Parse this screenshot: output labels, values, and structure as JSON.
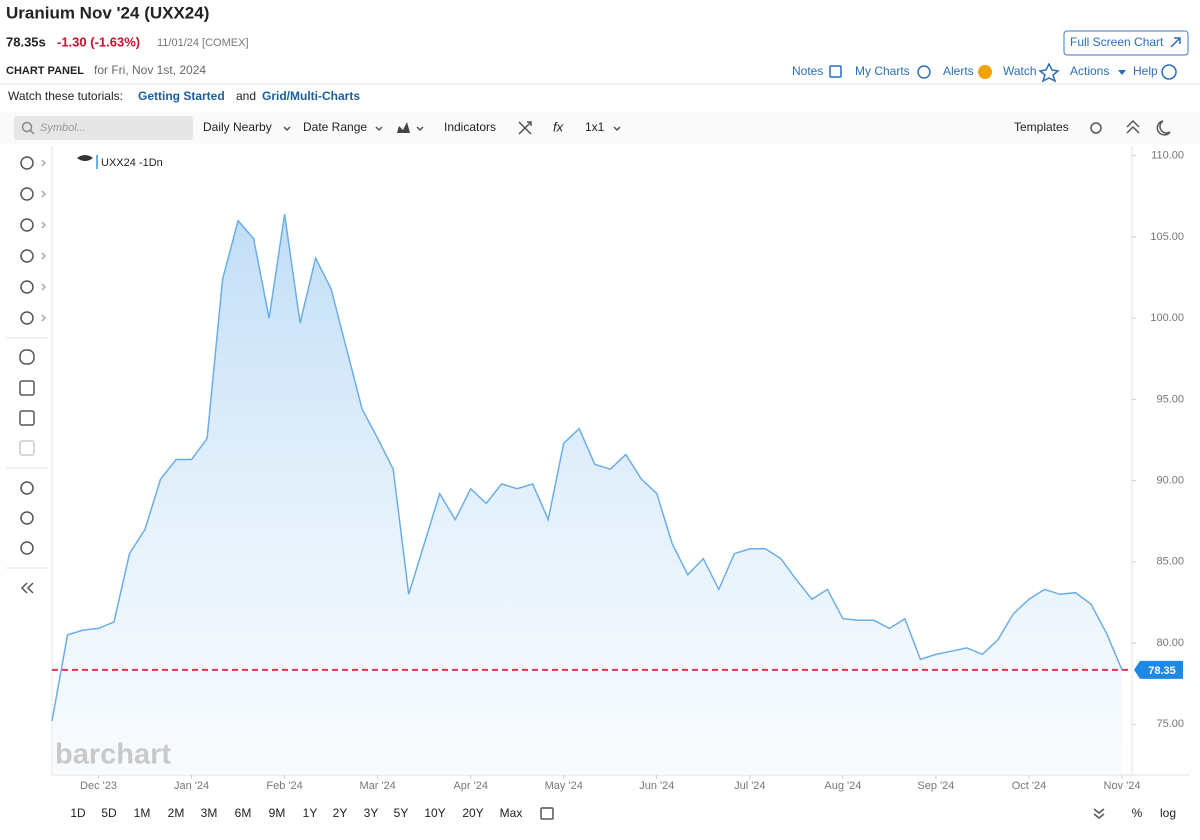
{
  "header": {
    "title": "Uranium Nov '24 (UXX24)",
    "price": "78.35s",
    "change": "-1.30 (-1.63%)",
    "date": "11/01/24 [COMEX]",
    "full_screen": "Full Screen Chart",
    "panel_label": "CHART PANEL",
    "panel_date": "for Fri, Nov 1st, 2024",
    "links": [
      "Notes",
      "My Charts",
      "Alerts",
      "Watch",
      "Actions",
      "Help"
    ]
  },
  "tutorials": {
    "prefix": "Watch these tutorials:",
    "links": [
      "Getting Started",
      "Grid/Multi-Charts"
    ],
    "joiner": "and"
  },
  "toolbar": {
    "symbol_placeholder": "Symbol...",
    "items": [
      "Daily Nearby",
      "Date Range",
      "Indicators",
      "fx",
      "1x1"
    ],
    "templates": "Templates"
  },
  "chart_data": {
    "type": "area",
    "legend": "UXX24 -1Dn",
    "watermark": "barchart",
    "color": "#6aaee8",
    "categories": [
      null,
      null,
      null,
      "Dec '23",
      null,
      null,
      null,
      null,
      null,
      "Jan '24",
      null,
      null,
      null,
      null,
      null,
      "Feb '24",
      null,
      null,
      null,
      null,
      null,
      "Mar '24",
      null,
      null,
      null,
      null,
      null,
      "Apr '24",
      null,
      null,
      null,
      null,
      null,
      "May '24",
      null,
      null,
      null,
      null,
      null,
      "Jun '24",
      null,
      null,
      null,
      null,
      null,
      "Jul '24",
      null,
      null,
      null,
      null,
      null,
      "Aug '24",
      null,
      null,
      null,
      null,
      null,
      "Sep '24",
      null,
      null,
      null,
      null,
      null,
      "Oct '24",
      null,
      null,
      null,
      null,
      null,
      "Nov '24"
    ],
    "values": [
      75.2,
      80.5,
      80.8,
      80.9,
      81.3,
      85.5,
      87.0,
      90.1,
      91.3,
      91.3,
      92.6,
      102.4,
      106.0,
      104.9,
      100.0,
      106.4,
      99.7,
      103.7,
      101.8,
      98.1,
      94.4,
      92.6,
      90.7,
      83.0,
      86.1,
      89.2,
      87.6,
      89.5,
      88.6,
      89.8,
      89.5,
      89.8,
      87.6,
      92.3,
      93.2,
      91.0,
      90.7,
      91.6,
      90.1,
      89.2,
      86.1,
      84.2,
      85.2,
      83.3,
      85.5,
      85.8,
      85.8,
      85.2,
      83.9,
      82.7,
      83.3,
      81.5,
      81.4,
      81.4,
      80.9,
      81.5,
      79.0,
      79.3,
      79.5,
      79.7,
      79.3,
      80.2,
      81.8,
      82.7,
      83.3,
      83.0,
      83.1,
      82.4,
      80.6,
      78.35
    ],
    "ylim": [
      72,
      110.6
    ],
    "yticks": [
      {
        "value": 75,
        "label": "75.00"
      },
      {
        "value": 80,
        "label": "80.00"
      },
      {
        "value": 85,
        "label": "85.00"
      },
      {
        "value": 90,
        "label": "90.00"
      },
      {
        "value": 95,
        "label": "95.00"
      },
      {
        "value": 100,
        "label": "100.00"
      },
      {
        "value": 105,
        "label": "105.00"
      },
      {
        "value": 110,
        "label": "110.00"
      }
    ],
    "grid": false,
    "reference_line": {
      "value": 78.35,
      "color": "#e0334f",
      "label_color": "#1e88e5"
    }
  },
  "range_buttons": [
    "1D",
    "5D",
    "1M",
    "2M",
    "3M",
    "6M",
    "9M",
    "1Y",
    "2Y",
    "3Y",
    "5Y",
    "10Y",
    "20Y",
    "Max"
  ],
  "scale_buttons": [
    "%",
    "log"
  ]
}
